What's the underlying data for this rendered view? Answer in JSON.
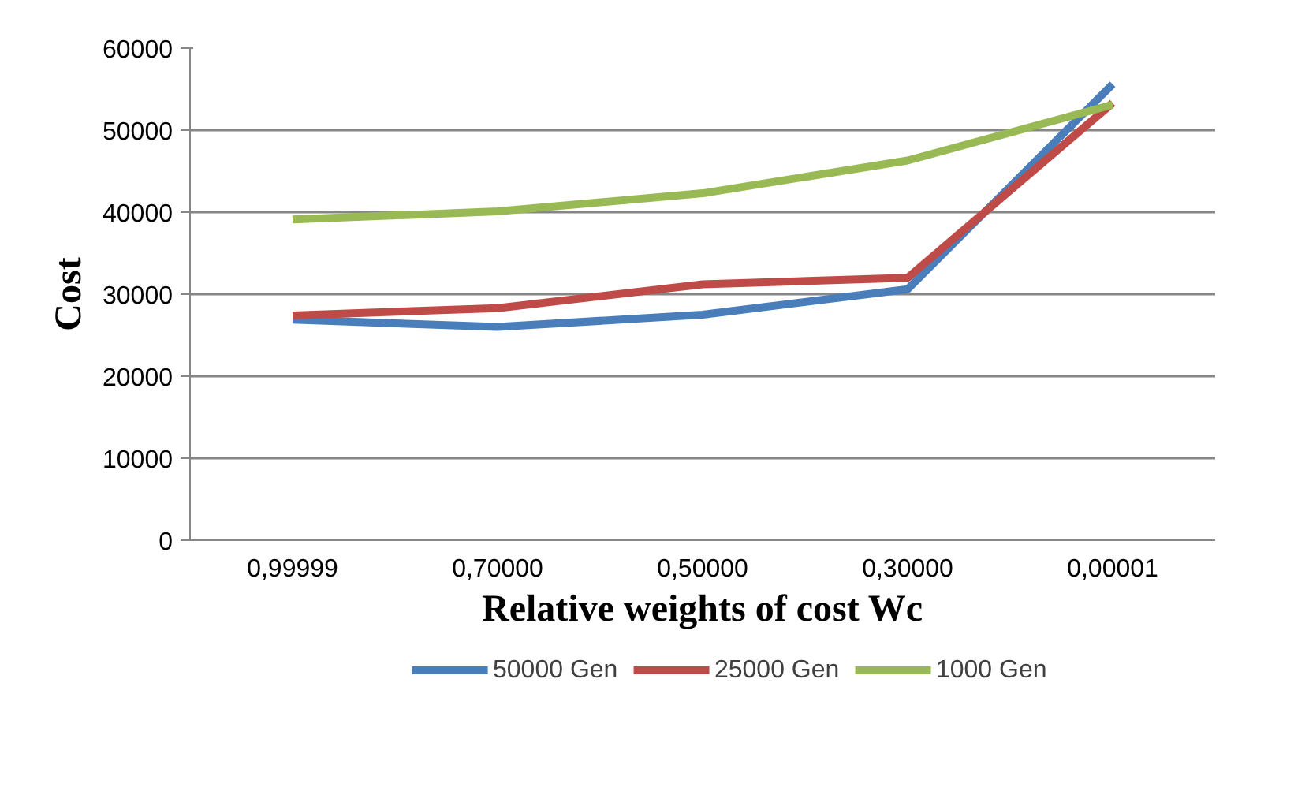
{
  "chart_data": {
    "type": "line",
    "xlabel": "Relative weights of cost Wc",
    "ylabel": "Cost",
    "categories": [
      "0,99999",
      "0,70000",
      "0,50000",
      "0,30000",
      "0,00001"
    ],
    "series": [
      {
        "name": "50000 Gen",
        "color": "#4a7ebb",
        "values": [
          26900,
          26000,
          27500,
          30600,
          55600
        ]
      },
      {
        "name": "25000 Gen",
        "color": "#be4b48",
        "values": [
          27400,
          28300,
          31200,
          32000,
          53300
        ]
      },
      {
        "name": "1000 Gen",
        "color": "#98b954",
        "values": [
          39100,
          40100,
          42300,
          46300,
          53100
        ]
      }
    ],
    "ylim": [
      0,
      60000
    ],
    "yticks": [
      0,
      10000,
      20000,
      30000,
      40000,
      50000,
      60000
    ],
    "grid": "y",
    "legend": "bottom",
    "marker": "none",
    "line_style": "solid"
  }
}
